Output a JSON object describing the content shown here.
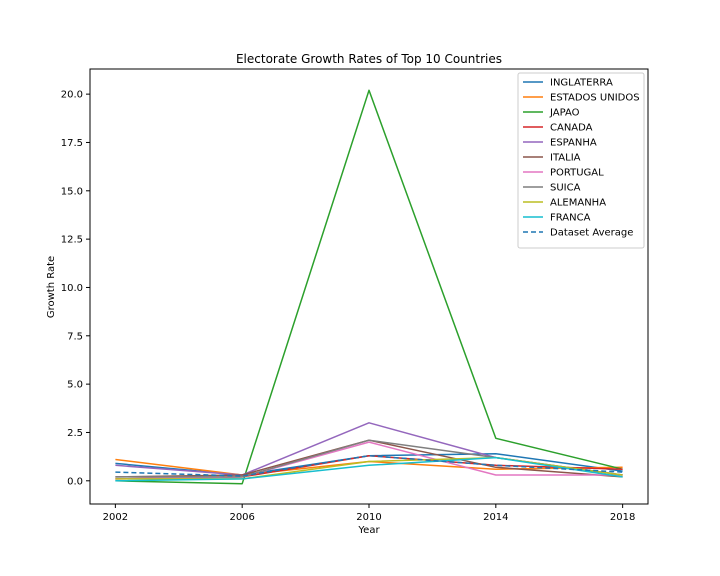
{
  "chart_data": {
    "type": "line",
    "title": "Electorate Growth Rates of Top 10 Countries",
    "xlabel": "Year",
    "ylabel": "Growth Rate",
    "x": [
      2002,
      2006,
      2010,
      2014,
      2018
    ],
    "xticks": [
      "2002",
      "2006",
      "2010",
      "2014",
      "2018"
    ],
    "yticks": [
      "0.0",
      "2.5",
      "5.0",
      "7.5",
      "10.0",
      "12.5",
      "15.0",
      "17.5",
      "20.0"
    ],
    "xlim": [
      2001.2,
      2018.8
    ],
    "ylim": [
      -1.2,
      21.3
    ],
    "grid": false,
    "legend_position": "upper-right",
    "series": [
      {
        "name": "INGLATERRA",
        "color": "#1f77b4",
        "dashed": false,
        "values": [
          0.9,
          0.3,
          1.3,
          1.4,
          0.5
        ]
      },
      {
        "name": "ESTADOS UNIDOS",
        "color": "#ff7f0e",
        "dashed": false,
        "values": [
          1.1,
          0.3,
          1.0,
          0.6,
          0.7
        ]
      },
      {
        "name": "JAPAO",
        "color": "#2ca02c",
        "dashed": false,
        "values": [
          0.0,
          -0.15,
          20.2,
          2.2,
          0.6
        ]
      },
      {
        "name": "CANADA",
        "color": "#d62728",
        "dashed": false,
        "values": [
          0.1,
          0.2,
          1.3,
          0.8,
          0.6
        ]
      },
      {
        "name": "ESPANHA",
        "color": "#9467bd",
        "dashed": false,
        "values": [
          0.8,
          0.3,
          3.0,
          1.2,
          0.3
        ]
      },
      {
        "name": "ITALIA",
        "color": "#8c564b",
        "dashed": false,
        "values": [
          0.2,
          0.3,
          2.1,
          0.7,
          0.2
        ]
      },
      {
        "name": "PORTUGAL",
        "color": "#e377c2",
        "dashed": false,
        "values": [
          0.1,
          0.2,
          2.0,
          0.3,
          0.3
        ]
      },
      {
        "name": "SUICA",
        "color": "#7f7f7f",
        "dashed": false,
        "values": [
          0.2,
          0.2,
          2.1,
          1.2,
          0.3
        ]
      },
      {
        "name": "ALEMANHA",
        "color": "#bcbd22",
        "dashed": false,
        "values": [
          0.1,
          0.1,
          1.0,
          1.2,
          0.3
        ]
      },
      {
        "name": "FRANCA",
        "color": "#17becf",
        "dashed": false,
        "values": [
          0.0,
          0.1,
          0.8,
          1.2,
          0.2
        ]
      },
      {
        "name": "Dataset Average",
        "color": "#1f77b4",
        "dashed": true,
        "values": [
          0.45,
          0.25,
          1.3,
          0.8,
          0.45
        ]
      }
    ]
  }
}
